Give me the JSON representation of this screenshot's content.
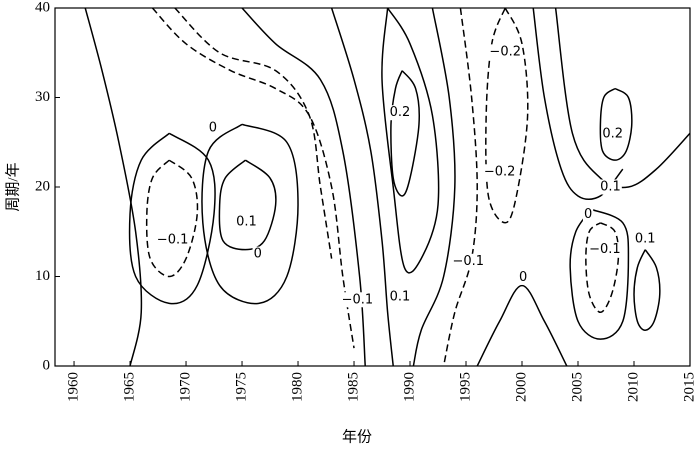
{
  "chart_data": {
    "type": "contour",
    "xlabel": "年份",
    "ylabel": "周期/年",
    "xlim": [
      1958.3,
      2015
    ],
    "ylim": [
      0,
      40
    ],
    "xticks": [
      1960,
      1965,
      1970,
      1975,
      1980,
      1985,
      1990,
      1995,
      2000,
      2005,
      2010,
      2015
    ],
    "yticks": [
      0,
      10,
      20,
      30,
      40
    ],
    "color": "#000000",
    "contours": [
      {
        "level": 0,
        "x": [
          1961,
          1962.5,
          1964,
          1965.5,
          1966,
          1965
        ],
        "y": [
          40,
          33,
          25,
          15,
          6,
          0
        ]
      },
      {
        "level": -0.1,
        "x": [
          1968.5,
          1970.5,
          1971,
          1970,
          1968.5,
          1966.8,
          1966.5,
          1967,
          1968.5
        ],
        "y": [
          23,
          21,
          17,
          12,
          10,
          12,
          17,
          21,
          23
        ]
      },
      {
        "level": 0,
        "x": [
          1968.5,
          1972,
          1972.5,
          1971,
          1968.5,
          1965.5,
          1965,
          1966,
          1968.5
        ],
        "y": [
          26,
          23,
          17,
          9,
          7,
          10,
          17,
          23,
          26
        ]
      },
      {
        "level": 0.1,
        "x": [
          1975.3,
          1977.5,
          1978,
          1977,
          1975.3,
          1973.3,
          1973,
          1973.5,
          1975.3
        ],
        "y": [
          23,
          21,
          18,
          14,
          13,
          14,
          18,
          21,
          23
        ]
      },
      {
        "level": 0,
        "x": [
          1975,
          1979,
          1980,
          1979,
          1976.5,
          1973,
          1971.5,
          1972,
          1975
        ],
        "y": [
          27,
          25,
          18,
          10,
          7,
          9,
          16,
          24,
          27
        ]
      },
      {
        "level": -0.1,
        "x": [
          1967,
          1970,
          1974,
          1978,
          1981,
          1983,
          1984,
          1985
        ],
        "y": [
          40,
          36,
          33,
          31,
          28,
          20,
          10,
          2
        ]
      },
      {
        "level": -0.2,
        "x": [
          1969,
          1973,
          1978,
          1981,
          1982,
          1983
        ],
        "y": [
          40,
          35,
          33,
          28,
          20,
          12
        ]
      },
      {
        "level": 0,
        "x": [
          1975,
          1978,
          1982,
          1984,
          1985.5,
          1986
        ],
        "y": [
          40,
          36,
          32,
          24,
          10,
          0
        ]
      },
      {
        "level": 0.1,
        "x": [
          1983,
          1985,
          1986.5,
          1987.5,
          1988,
          1988.5
        ],
        "y": [
          40,
          32,
          24,
          14,
          6,
          0
        ]
      },
      {
        "level": 0.2,
        "x": [
          1989.3,
          1990.5,
          1990.8,
          1990,
          1989.3,
          1988.5,
          1988.3,
          1988.7,
          1989.3
        ],
        "y": [
          33,
          31,
          27,
          21,
          19,
          21,
          27,
          31,
          33
        ]
      },
      {
        "level": 0.1,
        "x": [
          1988,
          1990,
          1992,
          1992.5,
          1991,
          1989.5,
          1988.5,
          1987.5,
          1988
        ],
        "y": [
          40,
          36,
          28,
          18,
          12,
          11,
          20,
          32,
          40
        ]
      },
      {
        "level": 0,
        "x": [
          1992,
          1993.5,
          1994,
          1993,
          1991,
          1990.3
        ],
        "y": [
          40,
          30,
          20,
          10,
          4,
          0
        ]
      },
      {
        "level": -0.1,
        "x": [
          1994.5,
          1995.5,
          1996,
          1995.5,
          1994,
          1993
        ],
        "y": [
          40,
          30,
          20,
          12,
          6,
          0
        ]
      },
      {
        "level": -0.2,
        "x": [
          1998.5,
          2000,
          2000.5,
          1999.5,
          1998.5,
          1997,
          1996.8,
          1997.3,
          1998.5
        ],
        "y": [
          40,
          36,
          28,
          19,
          16,
          19,
          28,
          36,
          40
        ]
      },
      {
        "level": 0,
        "x": [
          2001,
          2002,
          2003.5,
          2005,
          2007,
          2009
        ],
        "y": [
          40,
          30,
          22,
          19,
          19,
          22
        ]
      },
      {
        "level": 0.1,
        "x": [
          2003,
          2004.5,
          2007,
          2009.5,
          2012,
          2015
        ],
        "y": [
          40,
          26,
          21,
          20,
          22,
          26
        ]
      },
      {
        "level": 0.2,
        "x": [
          2008.3,
          2009.5,
          2009.8,
          2009.3,
          2008.3,
          2007.2,
          2007,
          2007.3,
          2008.3
        ],
        "y": [
          31,
          30,
          27,
          24,
          23,
          24,
          27,
          30,
          31
        ]
      },
      {
        "level": -0.1,
        "x": [
          2007,
          2008.3,
          2008.6,
          2008,
          2007,
          2006,
          2005.7,
          2006,
          2007
        ],
        "y": [
          16,
          15,
          12,
          8,
          6,
          8,
          12,
          15,
          16
        ]
      },
      {
        "level": 0,
        "x": [
          2006.2,
          2009,
          2009.5,
          2009,
          2007,
          2005,
          2004.3,
          2004.8,
          2006.2
        ],
        "y": [
          17.5,
          16,
          12,
          5,
          3,
          5,
          11,
          15,
          17.5
        ]
      },
      {
        "level": 0.1,
        "x": [
          2011,
          2012,
          2012.3,
          2011.8,
          2011,
          2010.3,
          2010,
          2010.3,
          2011
        ],
        "y": [
          13,
          11,
          8,
          5,
          4,
          5,
          8,
          11,
          13
        ]
      },
      {
        "level": 0,
        "x": [
          1996,
          1998,
          2000,
          2002,
          2004
        ],
        "y": [
          0,
          5,
          9,
          5,
          0
        ]
      }
    ],
    "annotations": [
      {
        "text": "−0.2",
        "x": 1998.5,
        "y": 35.1
      },
      {
        "text": "0.2",
        "x": 1989.1,
        "y": 28.3
      },
      {
        "text": "0",
        "x": 1972.4,
        "y": 26.6
      },
      {
        "text": "−0.2",
        "x": 1998.0,
        "y": 21.7
      },
      {
        "text": "0.1",
        "x": 2007.9,
        "y": 20.0
      },
      {
        "text": "0.2",
        "x": 2008.1,
        "y": 25.9
      },
      {
        "text": "0.1",
        "x": 1975.4,
        "y": 16.1
      },
      {
        "text": "−0.1",
        "x": 1968.8,
        "y": 14.1
      },
      {
        "text": "0",
        "x": 2005.9,
        "y": 16.9
      },
      {
        "text": "−0.1",
        "x": 2007.4,
        "y": 13.0
      },
      {
        "text": "0.1",
        "x": 2011.0,
        "y": 14.2
      },
      {
        "text": "0",
        "x": 1976.4,
        "y": 12.5
      },
      {
        "text": "−0.1",
        "x": 1995.2,
        "y": 11.7
      },
      {
        "text": "0",
        "x": 2000.1,
        "y": 9.9
      },
      {
        "text": "−0.1",
        "x": 1985.3,
        "y": 7.4
      },
      {
        "text": "0.1",
        "x": 1989.1,
        "y": 7.7
      }
    ]
  }
}
